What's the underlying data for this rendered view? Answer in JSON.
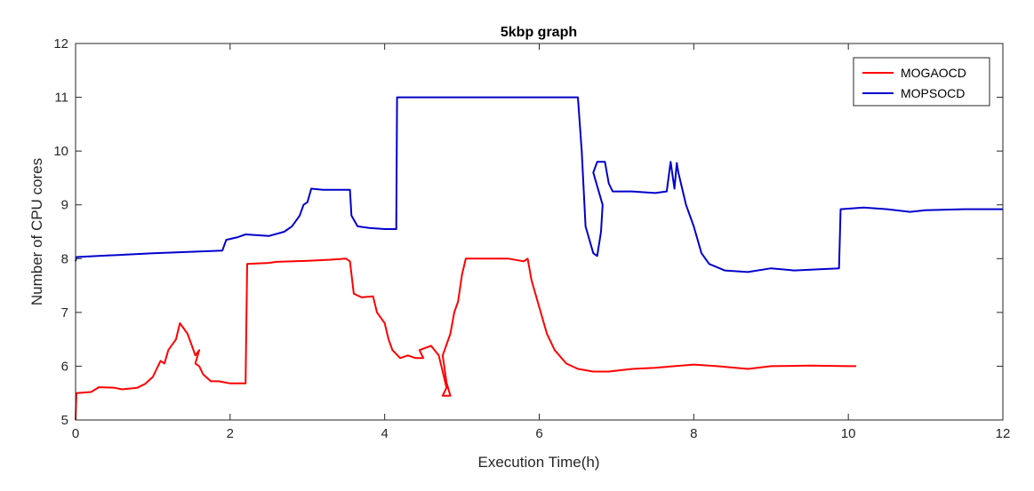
{
  "chart_data": {
    "type": "line",
    "title": "5kbp graph",
    "xlabel": "Execution Time(h)",
    "ylabel": "Number of CPU cores",
    "xlim": [
      0,
      12
    ],
    "ylim": [
      5,
      12
    ],
    "xticks": [
      0,
      2,
      4,
      6,
      8,
      10,
      12
    ],
    "yticks": [
      5,
      6,
      7,
      8,
      9,
      10,
      11,
      12
    ],
    "grid": false,
    "legend_position": "top-right",
    "series": [
      {
        "name": "MOGAOCD",
        "color": "#ff0000",
        "points": [
          [
            0,
            5.0
          ],
          [
            0.01,
            5.5
          ],
          [
            0.2,
            5.52
          ],
          [
            0.3,
            5.61
          ],
          [
            0.5,
            5.6
          ],
          [
            0.6,
            5.57
          ],
          [
            0.8,
            5.6
          ],
          [
            0.9,
            5.67
          ],
          [
            1.0,
            5.8
          ],
          [
            1.1,
            6.1
          ],
          [
            1.15,
            6.05
          ],
          [
            1.2,
            6.3
          ],
          [
            1.3,
            6.5
          ],
          [
            1.35,
            6.8
          ],
          [
            1.4,
            6.7
          ],
          [
            1.45,
            6.6
          ],
          [
            1.5,
            6.4
          ],
          [
            1.55,
            6.2
          ],
          [
            1.6,
            6.3
          ],
          [
            1.55,
            6.05
          ],
          [
            1.6,
            6.0
          ],
          [
            1.65,
            5.85
          ],
          [
            1.75,
            5.72
          ],
          [
            1.85,
            5.72
          ],
          [
            2.0,
            5.68
          ],
          [
            2.2,
            5.68
          ],
          [
            2.22,
            7.9
          ],
          [
            2.5,
            7.92
          ],
          [
            2.6,
            7.94
          ],
          [
            3.0,
            7.96
          ],
          [
            3.3,
            7.98
          ],
          [
            3.5,
            8.0
          ],
          [
            3.55,
            7.95
          ],
          [
            3.6,
            7.35
          ],
          [
            3.7,
            7.28
          ],
          [
            3.85,
            7.3
          ],
          [
            3.9,
            7.0
          ],
          [
            4.0,
            6.8
          ],
          [
            4.05,
            6.5
          ],
          [
            4.1,
            6.3
          ],
          [
            4.2,
            6.15
          ],
          [
            4.3,
            6.2
          ],
          [
            4.4,
            6.15
          ],
          [
            4.5,
            6.15
          ],
          [
            4.45,
            6.3
          ],
          [
            4.6,
            6.38
          ],
          [
            4.7,
            6.2
          ],
          [
            4.75,
            5.9
          ],
          [
            4.8,
            5.6
          ],
          [
            4.75,
            5.45
          ],
          [
            4.85,
            5.45
          ],
          [
            4.8,
            5.7
          ],
          [
            4.75,
            6.2
          ],
          [
            4.85,
            6.6
          ],
          [
            4.9,
            7.0
          ],
          [
            4.95,
            7.2
          ],
          [
            5.0,
            7.7
          ],
          [
            5.05,
            8.0
          ],
          [
            5.3,
            8.0
          ],
          [
            5.6,
            8.0
          ],
          [
            5.8,
            7.95
          ],
          [
            5.85,
            8.0
          ],
          [
            5.9,
            7.6
          ],
          [
            6.0,
            7.1
          ],
          [
            6.1,
            6.6
          ],
          [
            6.2,
            6.3
          ],
          [
            6.35,
            6.05
          ],
          [
            6.5,
            5.95
          ],
          [
            6.7,
            5.9
          ],
          [
            6.9,
            5.9
          ],
          [
            7.2,
            5.95
          ],
          [
            7.5,
            5.97
          ],
          [
            8.0,
            6.03
          ],
          [
            8.3,
            6.0
          ],
          [
            8.7,
            5.95
          ],
          [
            9.0,
            6.0
          ],
          [
            9.5,
            6.01
          ],
          [
            10.0,
            6.0
          ],
          [
            10.1,
            6.0
          ]
        ]
      },
      {
        "name": "MOPSOCD",
        "color": "#0000cc",
        "points": [
          [
            0,
            7.95
          ],
          [
            0.01,
            8.03
          ],
          [
            1.0,
            8.1
          ],
          [
            1.9,
            8.15
          ],
          [
            1.95,
            8.35
          ],
          [
            2.1,
            8.4
          ],
          [
            2.2,
            8.45
          ],
          [
            2.5,
            8.42
          ],
          [
            2.7,
            8.5
          ],
          [
            2.8,
            8.6
          ],
          [
            2.9,
            8.8
          ],
          [
            2.95,
            9.0
          ],
          [
            3.0,
            9.05
          ],
          [
            3.05,
            9.3
          ],
          [
            3.2,
            9.28
          ],
          [
            3.4,
            9.28
          ],
          [
            3.55,
            9.28
          ],
          [
            3.57,
            8.8
          ],
          [
            3.65,
            8.6
          ],
          [
            3.8,
            8.57
          ],
          [
            4.0,
            8.55
          ],
          [
            4.15,
            8.55
          ],
          [
            4.16,
            11.0
          ],
          [
            5.5,
            11.0
          ],
          [
            6.0,
            11.0
          ],
          [
            6.5,
            11.0
          ],
          [
            6.55,
            10.0
          ],
          [
            6.6,
            8.6
          ],
          [
            6.7,
            8.1
          ],
          [
            6.75,
            8.05
          ],
          [
            6.8,
            8.5
          ],
          [
            6.82,
            9.0
          ],
          [
            6.7,
            9.6
          ],
          [
            6.75,
            9.8
          ],
          [
            6.85,
            9.8
          ],
          [
            6.9,
            9.4
          ],
          [
            6.95,
            9.25
          ],
          [
            7.2,
            9.25
          ],
          [
            7.5,
            9.22
          ],
          [
            7.65,
            9.25
          ],
          [
            7.7,
            9.8
          ],
          [
            7.75,
            9.3
          ],
          [
            7.78,
            9.78
          ],
          [
            7.8,
            9.6
          ],
          [
            7.85,
            9.3
          ],
          [
            7.9,
            9.0
          ],
          [
            8.0,
            8.6
          ],
          [
            8.1,
            8.1
          ],
          [
            8.2,
            7.9
          ],
          [
            8.4,
            7.78
          ],
          [
            8.7,
            7.75
          ],
          [
            9.0,
            7.82
          ],
          [
            9.3,
            7.78
          ],
          [
            9.6,
            7.8
          ],
          [
            9.88,
            7.82
          ],
          [
            9.9,
            8.92
          ],
          [
            10.2,
            8.95
          ],
          [
            10.5,
            8.92
          ],
          [
            10.8,
            8.87
          ],
          [
            11.0,
            8.9
          ],
          [
            11.5,
            8.92
          ],
          [
            12.0,
            8.92
          ]
        ]
      }
    ]
  }
}
